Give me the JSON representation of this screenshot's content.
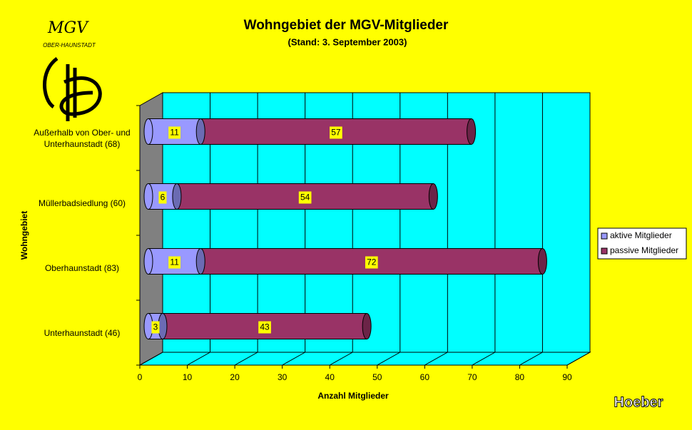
{
  "chart_data": {
    "type": "bar3d_stacked_horizontal",
    "title": "Wohngebiet der MGV-Mitglieder",
    "subtitle": "(Stand: 3. September 2003)",
    "x_label": "Anzahl Mitglieder",
    "y_label": "Wohngebiet",
    "categories": [
      "Außerhalb von Ober- und Unterhaunstadt (68)",
      "Müllerbadsiedlung (60)",
      "Oberhaunstadt (83)",
      "Unterhaunstadt (46)"
    ],
    "series": [
      {
        "name": "aktive Mitglieder",
        "color": "#9999ff",
        "values": [
          11,
          6,
          11,
          3
        ]
      },
      {
        "name": "passive Mitglieder",
        "color": "#993366",
        "values": [
          57,
          54,
          72,
          43
        ]
      }
    ],
    "xlim": [
      0,
      90
    ],
    "xticks": [
      0,
      10,
      20,
      30,
      40,
      50,
      60,
      70,
      80,
      90
    ],
    "grid": true,
    "legend": "right",
    "logo": {
      "title": "MGV",
      "subtitle": "OBER-HAUNSTADT"
    },
    "signature": "Hoeber"
  }
}
